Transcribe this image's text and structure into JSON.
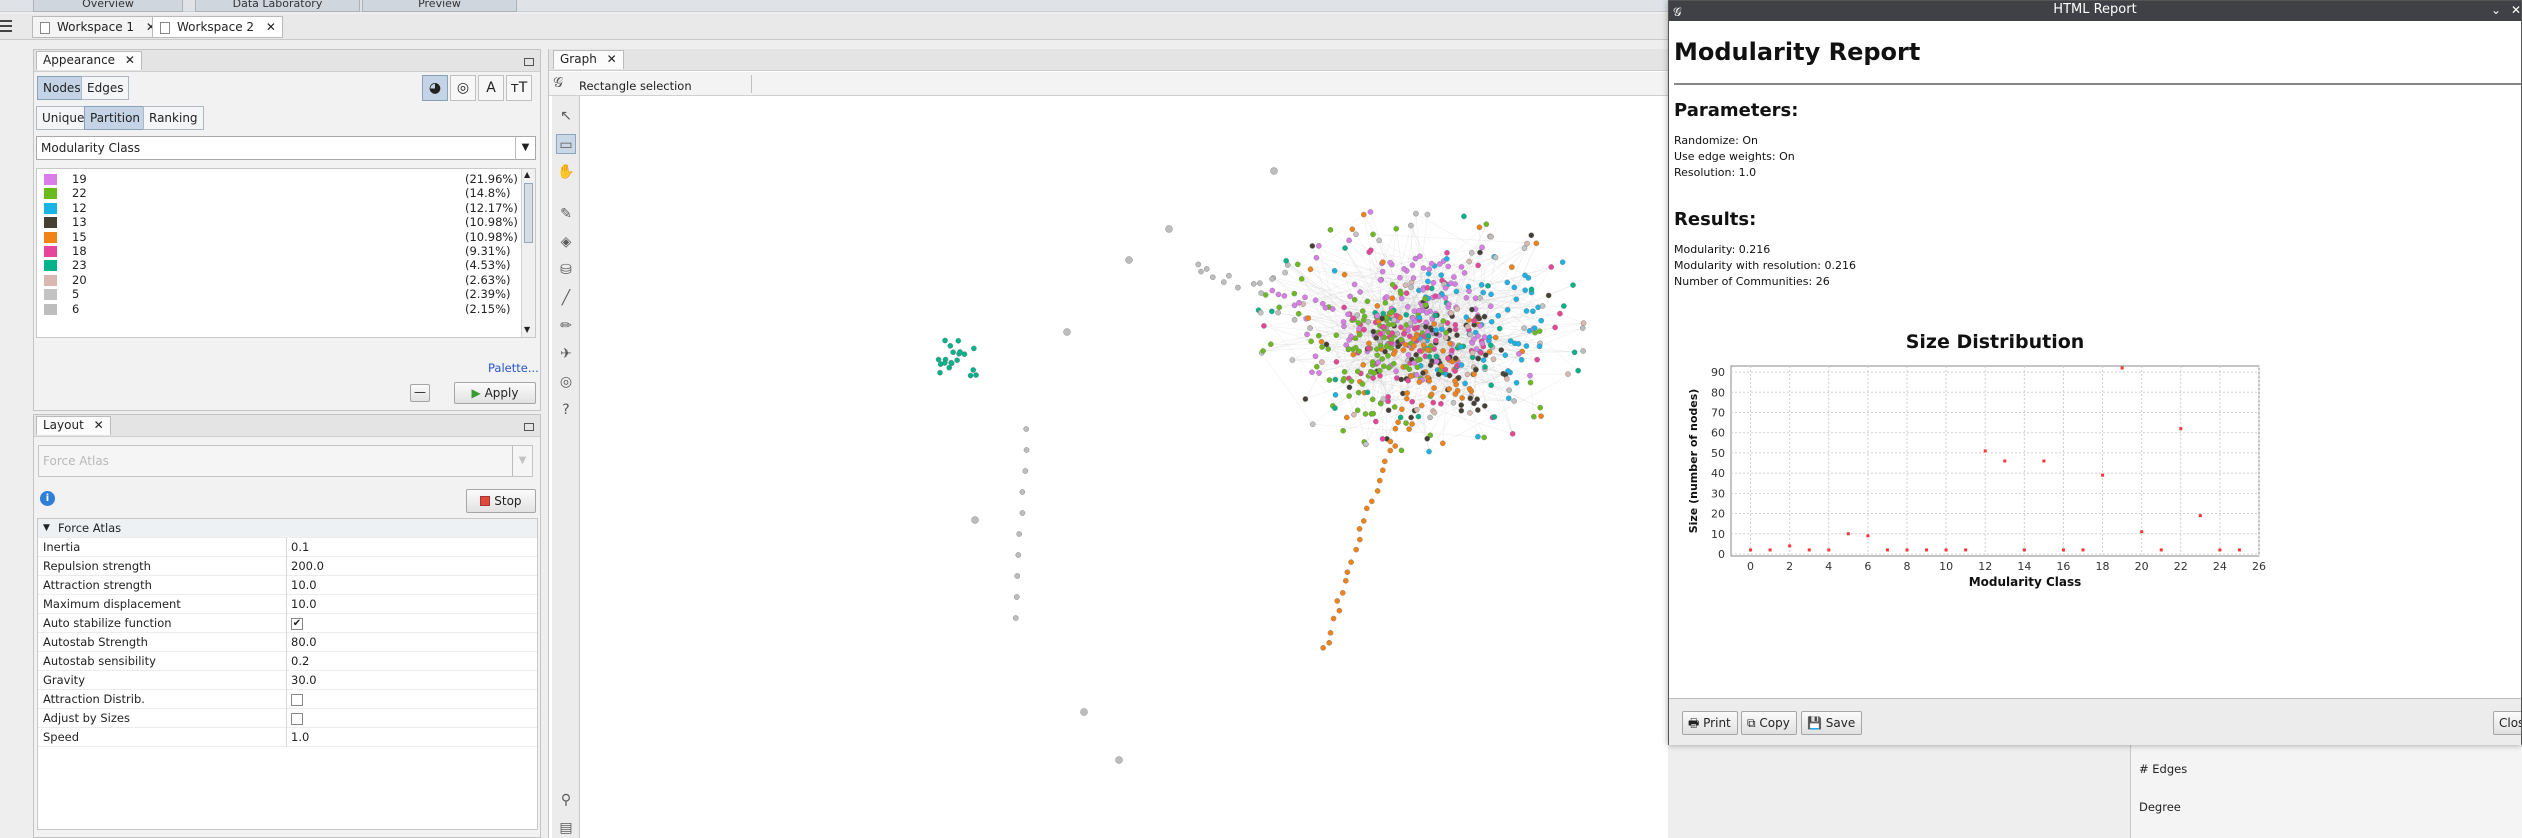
{
  "top": {
    "tabs": [
      "Overview",
      "Data Laboratory",
      "Preview"
    ],
    "workspaces": [
      {
        "label": "Workspace 1",
        "close": "✕"
      },
      {
        "label": "Workspace 2",
        "close": "✕"
      }
    ]
  },
  "appearance": {
    "title": "Appearance",
    "close": "✕",
    "target_tabs": [
      "Nodes",
      "Edges"
    ],
    "mode_tabs": [
      "Unique",
      "Partition",
      "Ranking"
    ],
    "attribute": "Modularity Class",
    "partitions": [
      {
        "label": "19",
        "pct": "(21.96%)",
        "color": "#d97ee8"
      },
      {
        "label": "22",
        "pct": "(14.8%)",
        "color": "#6bbb1e"
      },
      {
        "label": "12",
        "pct": "(12.17%)",
        "color": "#19b3e6"
      },
      {
        "label": "13",
        "pct": "(10.98%)",
        "color": "#444034"
      },
      {
        "label": "15",
        "pct": "(10.98%)",
        "color": "#f08216"
      },
      {
        "label": "18",
        "pct": "(9.31%)",
        "color": "#e8459a"
      },
      {
        "label": "23",
        "pct": "(4.53%)",
        "color": "#00b38b"
      },
      {
        "label": "20",
        "pct": "(2.63%)",
        "color": "#d9b8b1"
      },
      {
        "label": "5",
        "pct": "(2.39%)",
        "color": "#c3c3c3"
      },
      {
        "label": "6",
        "pct": "(2.15%)",
        "color": "#bdbdbd"
      }
    ],
    "palette_link": "Palette...",
    "apply": "Apply",
    "collapse": "—"
  },
  "layout": {
    "title": "Layout",
    "close": "✕",
    "algorithm_placeholder": "Force Atlas",
    "stop": "Stop",
    "section": "Force Atlas",
    "properties": [
      {
        "name": "Inertia",
        "value": "0.1"
      },
      {
        "name": "Repulsion strength",
        "value": "200.0"
      },
      {
        "name": "Attraction strength",
        "value": "10.0"
      },
      {
        "name": "Maximum displacement",
        "value": "10.0"
      },
      {
        "name": "Auto stabilize function",
        "check": true
      },
      {
        "name": "Autostab Strength",
        "value": "80.0"
      },
      {
        "name": "Autostab sensibility",
        "value": "0.2"
      },
      {
        "name": "Gravity",
        "value": "30.0"
      },
      {
        "name": "Attraction Distrib.",
        "check": false
      },
      {
        "name": "Adjust by Sizes",
        "check": false
      },
      {
        "name": "Speed",
        "value": "1.0"
      }
    ]
  },
  "graph": {
    "tab": "Graph",
    "close": "✕",
    "tool_label": "Rectangle selection"
  },
  "stats": {
    "edges_label": "# Edges",
    "degree_label": "Degree"
  },
  "report": {
    "window_title": "HTML Report",
    "heading": "Modularity Report",
    "params_heading": "Parameters:",
    "params": [
      "Randomize: On",
      "Use edge weights: On",
      "Resolution: 1.0"
    ],
    "results_heading": "Results:",
    "results": [
      "Modularity: 0.216",
      "Modularity with resolution: 0.216",
      "Number of Communities: 26"
    ],
    "buttons": [
      "Print",
      "Copy",
      "Save"
    ],
    "close_button": "Close"
  },
  "chart_data": {
    "type": "scatter",
    "title": "Size Distribution",
    "xlabel": "Modularity Class",
    "ylabel": "Size (number of nodes)",
    "xlim": [
      -1,
      26
    ],
    "ylim": [
      -1,
      93
    ],
    "xticks": [
      0,
      2,
      4,
      6,
      8,
      10,
      12,
      14,
      16,
      18,
      20,
      22,
      24,
      26
    ],
    "yticks": [
      0,
      10,
      20,
      30,
      40,
      50,
      60,
      70,
      80,
      90
    ],
    "x": [
      0,
      1,
      2,
      3,
      4,
      5,
      6,
      7,
      8,
      9,
      10,
      11,
      12,
      13,
      14,
      15,
      16,
      17,
      18,
      19,
      20,
      21,
      22,
      23,
      24,
      25
    ],
    "y": [
      2,
      2,
      4,
      2,
      2,
      10,
      9,
      2,
      2,
      2,
      2,
      2,
      51,
      46,
      2,
      46,
      2,
      2,
      39,
      92,
      11,
      2,
      62,
      19,
      2,
      2
    ],
    "marker_color": "#ff3333"
  }
}
